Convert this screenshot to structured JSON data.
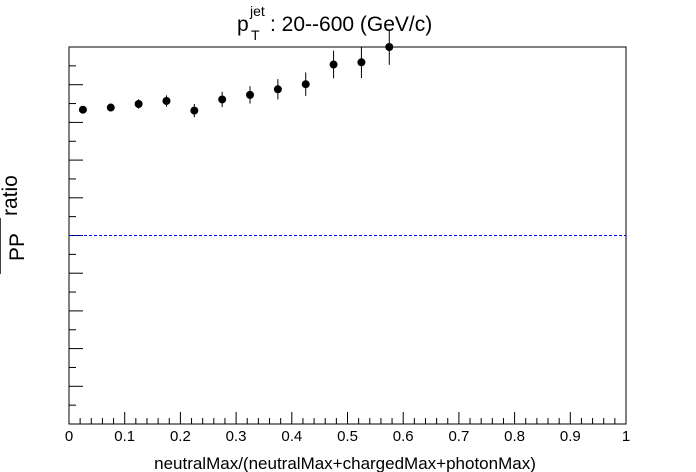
{
  "chart_data": {
    "type": "scatter",
    "title_main": "p",
    "title_sup": "jet",
    "title_sub": "T",
    "title_rest": ":  20--600 (GeV/c)",
    "xlabel": "neutralMax/(neutralMax+chargedMax+photonMax)",
    "ylabel_fraction": "PP",
    "ylabel_suffix": "ratio",
    "xlim": [
      0,
      1
    ],
    "ylim": [
      0,
      1
    ],
    "x_ticks": [
      "0",
      "0.1",
      "0.2",
      "0.3",
      "0.4",
      "0.5",
      "0.6",
      "0.7",
      "0.8",
      "0.9",
      "1"
    ],
    "reference_line": {
      "y": 0.5,
      "color": "#0000ff",
      "style": "dashed"
    },
    "marker_color": "#000000",
    "points": [
      {
        "x": 0.025,
        "y": 0.8337,
        "err": 0.0081
      },
      {
        "x": 0.075,
        "y": 0.8394,
        "err": 0.0095
      },
      {
        "x": 0.125,
        "y": 0.8488,
        "err": 0.0122
      },
      {
        "x": 0.175,
        "y": 0.8569,
        "err": 0.0149
      },
      {
        "x": 0.225,
        "y": 0.8313,
        "err": 0.0176
      },
      {
        "x": 0.275,
        "y": 0.8609,
        "err": 0.0203
      },
      {
        "x": 0.325,
        "y": 0.873,
        "err": 0.023
      },
      {
        "x": 0.375,
        "y": 0.8878,
        "err": 0.027
      },
      {
        "x": 0.425,
        "y": 0.9013,
        "err": 0.0311
      },
      {
        "x": 0.475,
        "y": 0.9535,
        "err": 0.0365
      },
      {
        "x": 0.525,
        "y": 0.9595,
        "err": 0.0419
      },
      {
        "x": 0.575,
        "y": 1.0,
        "err": 0.0473
      }
    ]
  }
}
